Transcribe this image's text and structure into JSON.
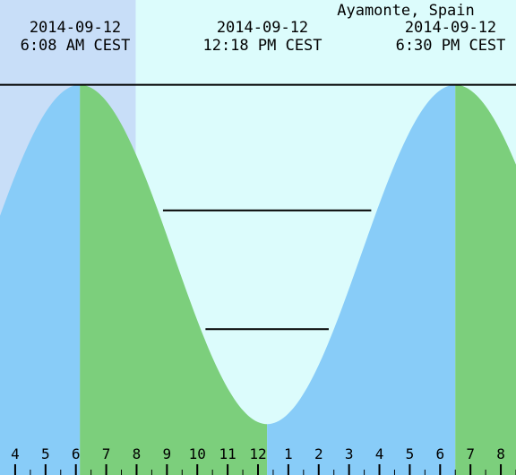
{
  "location": "Ayamonte, Spain",
  "chart_data": {
    "type": "area",
    "title": "Ayamonte, Spain",
    "events": [
      {
        "date": "2014-09-12",
        "time": "6:08 AM CEST",
        "kind": "high"
      },
      {
        "date": "2014-09-12",
        "time": "12:18 PM CEST",
        "kind": "low"
      },
      {
        "date": "2014-09-12",
        "time": "6:30 PM CEST",
        "kind": "high"
      }
    ],
    "x_unit": "hour of day",
    "x_range": [
      3.5,
      20.5
    ],
    "x_tick_labels": [
      "4",
      "5",
      "6",
      "7",
      "8",
      "9",
      "10",
      "11",
      "12",
      "1",
      "2",
      "3",
      "4",
      "5",
      "6",
      "7",
      "8"
    ],
    "tide_extremes": [
      {
        "hour": 6.133,
        "level": 1.0
      },
      {
        "hour": 12.3,
        "level": 0.0
      },
      {
        "hour": 18.5,
        "level": 1.0
      }
    ],
    "y_range": [
      -0.15,
      1.25
    ],
    "reference_lines": [
      {
        "level": 1.0,
        "from_hour": 3.5,
        "to_hour": 20.5
      },
      {
        "level": 0.63,
        "from_hour": 8.87,
        "to_hour": 15.73
      },
      {
        "level": 0.28,
        "from_hour": 10.27,
        "to_hour": 14.33
      }
    ],
    "shaded_band": {
      "from_hour": 3.5,
      "to_hour": 7.97
    },
    "colors": {
      "background": "#dcfcfc",
      "band": "#c8def8",
      "rising": "#88ccf8",
      "falling": "#7ccf7c",
      "line": "#000000",
      "text": "#000000"
    }
  }
}
